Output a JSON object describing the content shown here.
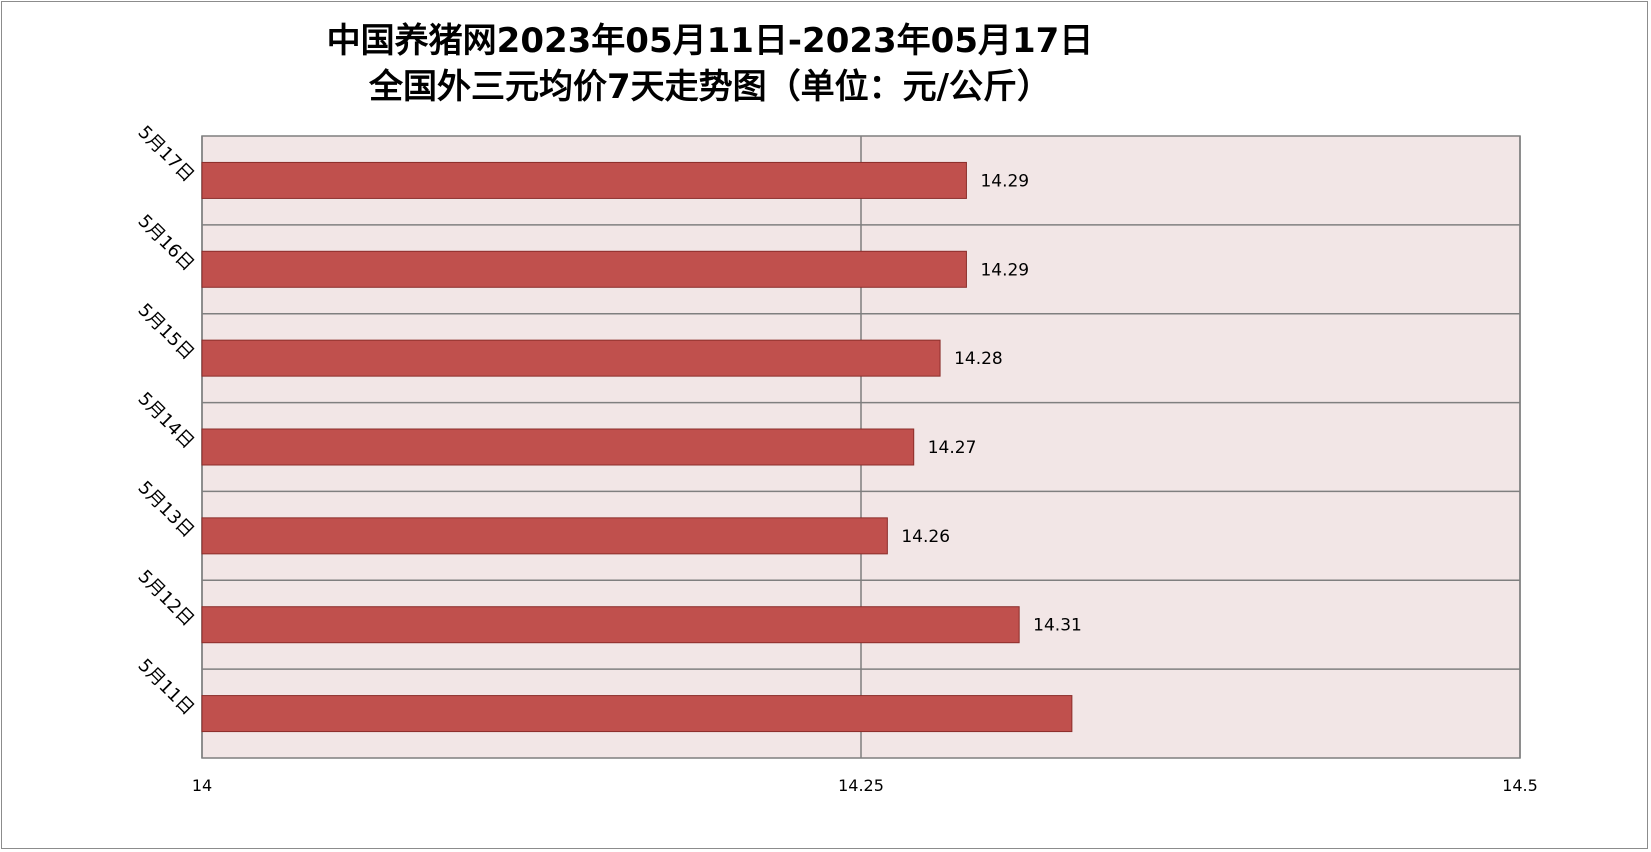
{
  "chart_data": {
    "type": "bar",
    "orientation": "horizontal",
    "title_line1": "中国养猪网2023年05月11日-2023年05月17日",
    "title_line2": "全国外三元均价7天走势图（单位：元/公斤）",
    "categories": [
      "5月17日",
      "5月16日",
      "5月15日",
      "5月14日",
      "5月13日",
      "5月12日",
      "5月11日"
    ],
    "values": [
      14.29,
      14.29,
      14.28,
      14.27,
      14.26,
      14.31,
      14.33
    ],
    "data_labels": [
      "14.29",
      "14.29",
      "14.28",
      "14.27",
      "14.26",
      "14.31",
      ""
    ],
    "xlim": [
      14,
      14.5
    ],
    "x_ticks": [
      "14",
      "14.25",
      "14.5"
    ],
    "grid": true,
    "legend": "none",
    "colors": {
      "bar_fill": "#c0504d",
      "bar_stroke": "#8b2d2a",
      "plot_background": "#f2e6e6",
      "grid_line": "#7f7f7f"
    }
  }
}
